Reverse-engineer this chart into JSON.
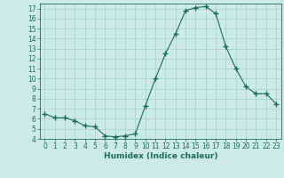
{
  "x": [
    0,
    1,
    2,
    3,
    4,
    5,
    6,
    7,
    8,
    9,
    10,
    11,
    12,
    13,
    14,
    15,
    16,
    17,
    18,
    19,
    20,
    21,
    22,
    23
  ],
  "y": [
    6.5,
    6.1,
    6.1,
    5.8,
    5.3,
    5.2,
    4.3,
    4.2,
    4.3,
    4.5,
    7.3,
    10.0,
    12.5,
    14.5,
    16.8,
    17.1,
    17.2,
    16.5,
    13.2,
    11.0,
    9.2,
    8.5,
    8.5,
    7.5
  ],
  "line_color": "#1a6b5a",
  "marker": "+",
  "marker_size": 4,
  "xlabel": "Humidex (Indice chaleur)",
  "xlim": [
    -0.5,
    23.5
  ],
  "ylim": [
    4,
    17.5
  ],
  "yticks": [
    4,
    5,
    6,
    7,
    8,
    9,
    10,
    11,
    12,
    13,
    14,
    15,
    16,
    17
  ],
  "xticks": [
    0,
    1,
    2,
    3,
    4,
    5,
    6,
    7,
    8,
    9,
    10,
    11,
    12,
    13,
    14,
    15,
    16,
    17,
    18,
    19,
    20,
    21,
    22,
    23
  ],
  "bg_color": "#cceaea",
  "grid_color": "#aacccc",
  "line_width": 0.8,
  "tick_color": "#1a6b5a",
  "label_color": "#1a6b5a",
  "xlabel_fontsize": 6.5,
  "tick_fontsize": 5.5
}
